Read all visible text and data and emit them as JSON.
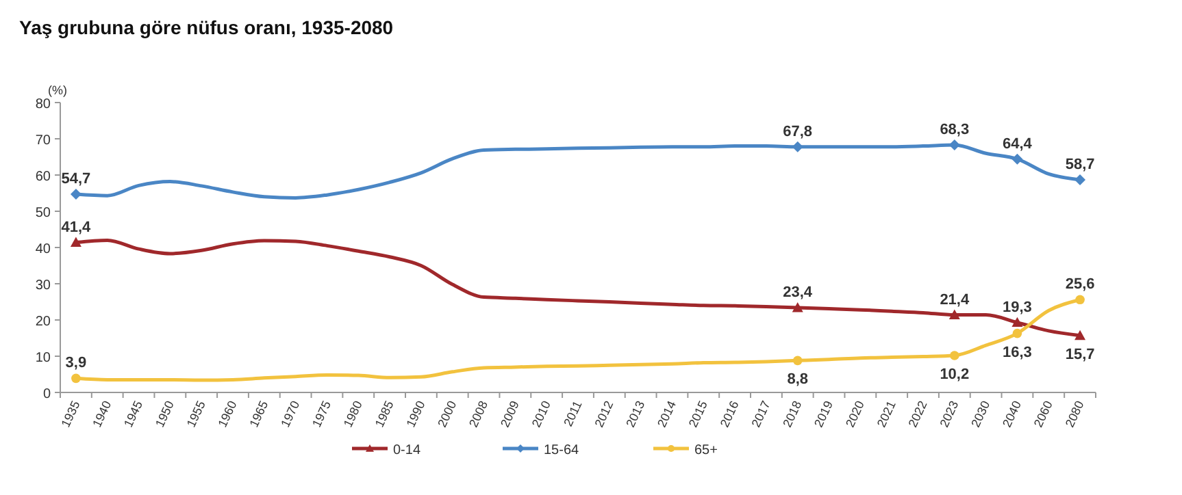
{
  "chart_data": {
    "type": "line",
    "title": "Yaş grubuna göre nüfus oranı, 1935-2080",
    "ylabel": "(%)",
    "categories": [
      "1935",
      "1940",
      "1945",
      "1950",
      "1955",
      "1960",
      "1965",
      "1970",
      "1975",
      "1980",
      "1985",
      "1990",
      "2000",
      "2008",
      "2009",
      "2010",
      "2011",
      "2012",
      "2013",
      "2014",
      "2015",
      "2016",
      "2017",
      "2018",
      "2019",
      "2020",
      "2021",
      "2022",
      "2023",
      "2030",
      "2040",
      "2060",
      "2080"
    ],
    "ylim": [
      0,
      80
    ],
    "yticks": [
      0,
      10,
      20,
      30,
      40,
      50,
      60,
      70,
      80
    ],
    "grid": false,
    "legend": "bottom",
    "line_style": "solid",
    "series": [
      {
        "name": "0-14",
        "color": "#a0282b",
        "values": [
          41.4,
          42.0,
          39.6,
          38.3,
          39.2,
          41.0,
          41.9,
          41.7,
          40.5,
          39.0,
          37.4,
          35.0,
          29.8,
          26.3,
          26.0,
          25.6,
          25.3,
          25.0,
          24.6,
          24.3,
          24.0,
          23.9,
          23.7,
          23.4,
          23.1,
          22.8,
          22.4,
          22.0,
          21.4,
          21.4,
          19.3,
          17.0,
          15.7
        ],
        "value_labels": [
          "41,4",
          null,
          null,
          null,
          null,
          null,
          null,
          null,
          null,
          null,
          null,
          null,
          null,
          null,
          null,
          null,
          null,
          null,
          null,
          null,
          null,
          null,
          null,
          "23,4",
          null,
          null,
          null,
          null,
          "21,4",
          null,
          "19,3",
          null,
          "15,7"
        ]
      },
      {
        "name": "15-64",
        "color": "#4a86c5",
        "values": [
          54.7,
          54.3,
          57.1,
          58.2,
          57.0,
          55.3,
          54.0,
          53.7,
          54.5,
          56.0,
          58.0,
          60.6,
          64.5,
          66.9,
          67.1,
          67.2,
          67.4,
          67.5,
          67.7,
          67.8,
          67.8,
          68.0,
          68.0,
          67.8,
          67.8,
          67.8,
          67.8,
          68.0,
          68.3,
          66.0,
          64.4,
          60.3,
          58.7
        ],
        "value_labels": [
          "54,7",
          null,
          null,
          null,
          null,
          null,
          null,
          null,
          null,
          null,
          null,
          null,
          null,
          null,
          null,
          null,
          null,
          null,
          null,
          null,
          null,
          null,
          null,
          "67,8",
          null,
          null,
          null,
          null,
          "68,3",
          null,
          "64,4",
          null,
          "58,7"
        ]
      },
      {
        "name": "65+",
        "color": "#f2c23e",
        "values": [
          3.9,
          3.5,
          3.5,
          3.5,
          3.4,
          3.5,
          4.0,
          4.4,
          4.8,
          4.7,
          4.1,
          4.3,
          5.7,
          6.8,
          7.0,
          7.2,
          7.3,
          7.5,
          7.7,
          7.9,
          8.2,
          8.3,
          8.5,
          8.8,
          9.1,
          9.5,
          9.7,
          9.9,
          10.2,
          13.0,
          16.3,
          22.6,
          25.6
        ],
        "value_labels": [
          "3,9",
          null,
          null,
          null,
          null,
          null,
          null,
          null,
          null,
          null,
          null,
          null,
          null,
          null,
          null,
          null,
          null,
          null,
          null,
          null,
          null,
          null,
          null,
          "8,8",
          null,
          null,
          null,
          null,
          "10,2",
          null,
          "16,3",
          null,
          "25,6"
        ]
      }
    ]
  }
}
